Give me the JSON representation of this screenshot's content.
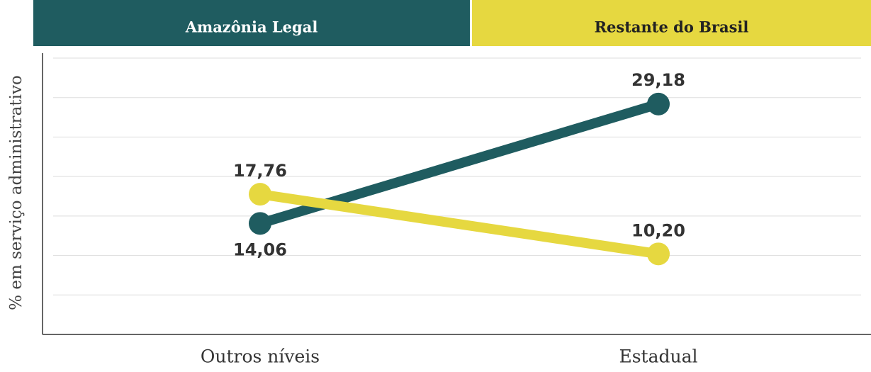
{
  "chart_data": {
    "type": "line",
    "categories": [
      "Outros níveis",
      "Estadual"
    ],
    "series": [
      {
        "name": "Amazônia Legal",
        "color": "#1f5c60",
        "values": [
          14.06,
          29.18
        ],
        "value_labels": [
          "14,06",
          "29,18"
        ]
      },
      {
        "name": "Restante do Brasil",
        "color": "#e6d840",
        "values": [
          17.76,
          10.2
        ],
        "value_labels": [
          "17,76",
          "10,20"
        ]
      }
    ],
    "y_label": "% em serviço administrativo",
    "ylim": [
      0,
      35
    ],
    "yticks": [
      5,
      10,
      15,
      20,
      25,
      30,
      35
    ],
    "grid": true
  }
}
